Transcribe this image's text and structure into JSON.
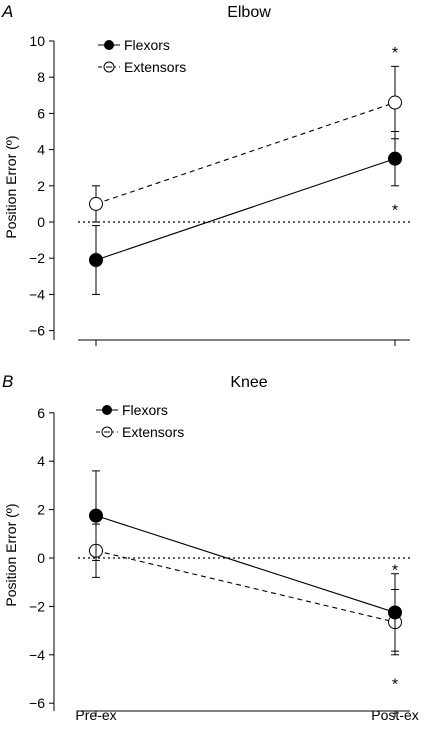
{
  "chart_data": [
    {
      "type": "line",
      "panel_label": "A",
      "title": "Elbow",
      "xlabel": "",
      "ylabel": "Position Error (º)",
      "categories": [
        "Pre-ex",
        "Post-ex"
      ],
      "ylim": [
        -6.5,
        10
      ],
      "yticks": [
        -6,
        -4,
        -2,
        0,
        2,
        4,
        6,
        8,
        10
      ],
      "ytick_labels": [
        "−6",
        "−4",
        "−2",
        "0",
        "2",
        "4",
        "6",
        "8",
        "10"
      ],
      "reference_line": 0,
      "legend_position": "top-left",
      "series": [
        {
          "name": "Flexors",
          "style": "solid",
          "marker": "filled-circle",
          "values": [
            -2.1,
            3.5
          ],
          "error": [
            1.9,
            1.5
          ]
        },
        {
          "name": "Extensors",
          "style": "dashed",
          "marker": "open-circle",
          "values": [
            1.0,
            6.6
          ],
          "error": [
            1.0,
            2.0
          ]
        }
      ],
      "annotations": [
        {
          "text": "*",
          "category": "Post-ex",
          "y": 9.5
        },
        {
          "text": "*",
          "category": "Post-ex",
          "y": 0.8
        }
      ]
    },
    {
      "type": "line",
      "panel_label": "B",
      "title": "Knee",
      "xlabel": "",
      "ylabel": "Position Error (º)",
      "categories": [
        "Pre-ex",
        "Post-ex"
      ],
      "ylim": [
        -6.5,
        6
      ],
      "yticks": [
        -6,
        -4,
        -2,
        0,
        2,
        4,
        6
      ],
      "ytick_labels": [
        "−6",
        "−4",
        "−2",
        "0",
        "2",
        "4",
        "6"
      ],
      "reference_line": 0,
      "legend_position": "top-left",
      "series": [
        {
          "name": "Flexors",
          "style": "solid",
          "marker": "filled-circle",
          "values": [
            1.75,
            -2.25
          ],
          "error": [
            1.85,
            1.6
          ]
        },
        {
          "name": "Extensors",
          "style": "dashed",
          "marker": "open-circle",
          "values": [
            0.3,
            -2.65
          ],
          "error": [
            1.1,
            1.35
          ]
        }
      ],
      "annotations": [
        {
          "text": "*",
          "category": "Post-ex",
          "y": -0.4
        },
        {
          "text": "*",
          "category": "Post-ex",
          "y": -5.1
        }
      ]
    }
  ]
}
